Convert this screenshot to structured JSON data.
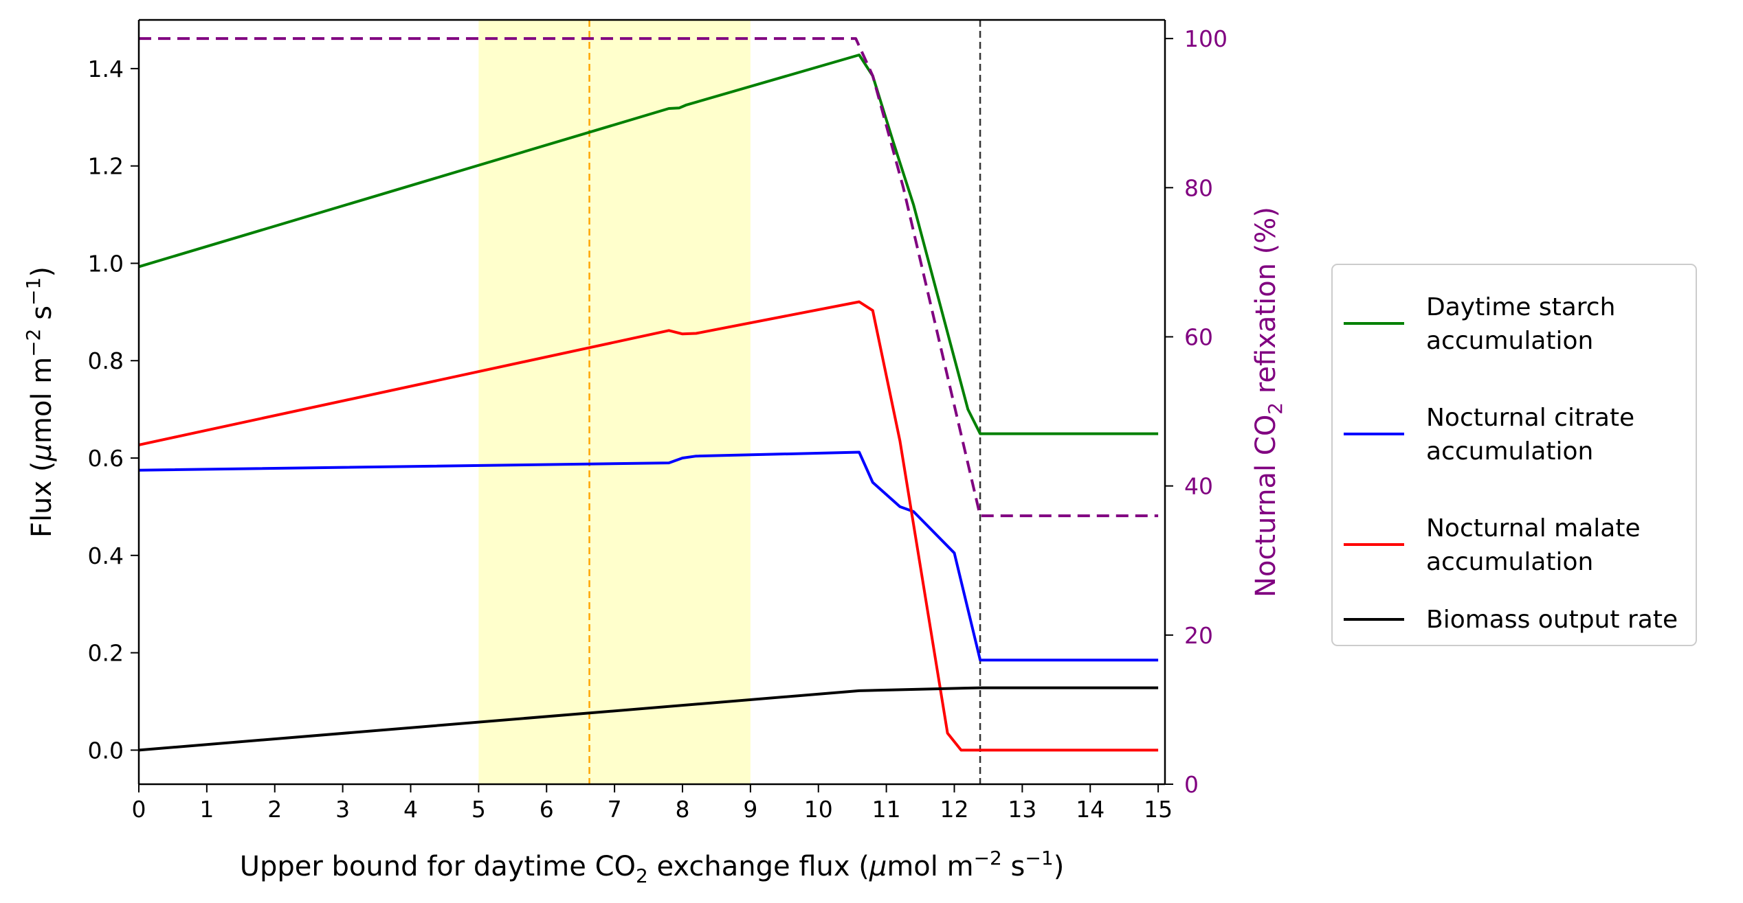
{
  "chart_data": {
    "type": "line",
    "x_axis": {
      "label_parts": [
        "Upper bound for daytime CO",
        "2",
        " exchange flux (",
        "μ",
        "mol m",
        "−2",
        " s",
        "−1",
        ")"
      ],
      "ticks": [
        0,
        1,
        2,
        3,
        4,
        5,
        6,
        7,
        8,
        9,
        10,
        11,
        12,
        13,
        14,
        15
      ],
      "tick_labels": [
        "0",
        "1",
        "2",
        "3",
        "4",
        "5",
        "6",
        "7",
        "8",
        "9",
        "10",
        "11",
        "12",
        "13",
        "14",
        "15"
      ],
      "range": [
        0,
        15.1
      ]
    },
    "y_left_axis": {
      "label_parts": [
        "Flux (",
        "μ",
        "mol m",
        "−2",
        " s",
        "−1",
        ")"
      ],
      "ticks": [
        0.0,
        0.2,
        0.4,
        0.6,
        0.8,
        1.0,
        1.2,
        1.4
      ],
      "tick_labels": [
        "0.0",
        "0.2",
        "0.4",
        "0.6",
        "0.8",
        "1.0",
        "1.2",
        "1.4"
      ],
      "range": [
        -0.07,
        1.5
      ]
    },
    "y_right_axis": {
      "label_parts": [
        "Nocturnal CO",
        "2",
        " refixation (%)"
      ],
      "ticks": [
        0,
        20,
        40,
        60,
        80,
        100
      ],
      "tick_labels": [
        "0",
        "20",
        "40",
        "60",
        "80",
        "100"
      ],
      "range": [
        0,
        102.5
      ],
      "color": "#800080"
    },
    "shaded_region": {
      "x": [
        5,
        9
      ],
      "color": "#ffffcc"
    },
    "vlines": [
      {
        "x": 6.63,
        "color": "#ffa500",
        "style": "dashed"
      },
      {
        "x": 12.38,
        "color": "#333333",
        "style": "dashed"
      }
    ],
    "series": [
      {
        "name_lines": [
          "Daytime starch",
          "accumulation"
        ],
        "axis": "left",
        "color": "#008000",
        "style": "solid",
        "x": [
          0,
          7.8,
          7.95,
          8.05,
          10.6,
          10.8,
          11.1,
          11.4,
          12.2,
          12.38,
          15
        ],
        "y": [
          0.993,
          1.318,
          1.319,
          1.325,
          1.428,
          1.385,
          1.25,
          1.12,
          0.7,
          0.65,
          0.65
        ]
      },
      {
        "name_lines": [
          "Nocturnal citrate",
          "accumulation"
        ],
        "axis": "left",
        "color": "#0000ff",
        "style": "solid",
        "x": [
          0,
          7.8,
          8.0,
          8.2,
          10.6,
          10.8,
          11.2,
          11.4,
          12.0,
          12.38,
          15
        ],
        "y": [
          0.575,
          0.59,
          0.6,
          0.604,
          0.612,
          0.55,
          0.5,
          0.49,
          0.405,
          0.185,
          0.185
        ]
      },
      {
        "name_lines": [
          "Nocturnal malate",
          "accumulation"
        ],
        "axis": "left",
        "color": "#ff0000",
        "style": "solid",
        "x": [
          0,
          7.8,
          8.0,
          8.2,
          10.6,
          10.8,
          11.2,
          11.9,
          12.1,
          15
        ],
        "y": [
          0.627,
          0.862,
          0.855,
          0.856,
          0.921,
          0.903,
          0.635,
          0.035,
          0.0,
          0.0
        ]
      },
      {
        "name_lines": [
          "Biomass output rate"
        ],
        "axis": "left",
        "color": "#000000",
        "style": "solid",
        "x": [
          0,
          10.6,
          12.38,
          15
        ],
        "y": [
          0.0,
          0.122,
          0.128,
          0.128
        ]
      },
      {
        "name_lines": [],
        "axis": "right",
        "color": "#800080",
        "style": "dashed",
        "x": [
          0,
          10.55,
          10.8,
          11.25,
          12.38,
          15
        ],
        "y": [
          100,
          100,
          95,
          80,
          36,
          36
        ]
      }
    ],
    "legend": {
      "placement": "right-outside"
    }
  }
}
